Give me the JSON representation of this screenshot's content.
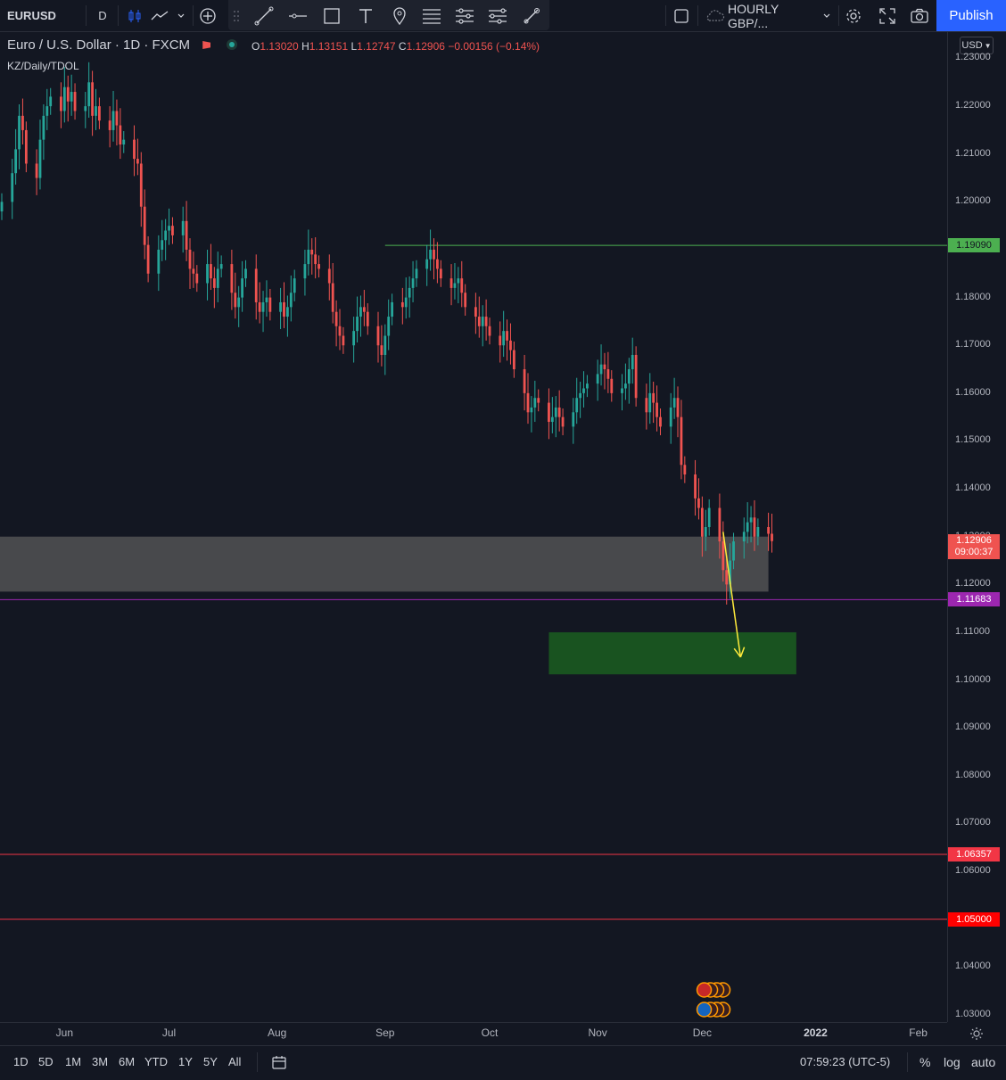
{
  "toolbar": {
    "symbol": "EURUSD",
    "interval": "D",
    "layout_name": "HOURLY GBP/...",
    "publish_label": "Publish"
  },
  "legend": {
    "title": "Euro / U.S. Dollar · 1D · FXCM",
    "o_label": "O",
    "o": "1.13020",
    "h_label": "H",
    "h": "1.13151",
    "l_label": "L",
    "l": "1.12747",
    "c_label": "C",
    "c": "1.12906",
    "change": "−0.00156 (−0.14%)",
    "indicator": "KZ/Daily/TDOL"
  },
  "currency": "USD",
  "colors": {
    "up": "#26a69a",
    "down": "#ef5350",
    "bg": "#131722",
    "resistance": "#4caf50",
    "support": "#9c27b0",
    "level": "#f23645",
    "zone_gray": "#5d5d5d",
    "zone_green": "#1b5e20",
    "arrow": "#ffeb3b",
    "accent": "#2962ff"
  },
  "chart_data": {
    "type": "candlestick",
    "series_name": "EURUSD",
    "ylim": [
      1.0285,
      1.2355
    ],
    "y_ticks": [
      1.23,
      1.22,
      1.21,
      1.2,
      1.19,
      1.18,
      1.17,
      1.16,
      1.15,
      1.14,
      1.13,
      1.12,
      1.11,
      1.1,
      1.09,
      1.08,
      1.07,
      1.06,
      1.05,
      1.04,
      1.03
    ],
    "x_labels": [
      "Jun",
      "Jul",
      "Aug",
      "Sep",
      "Oct",
      "Nov",
      "Dec",
      "2022",
      "Feb"
    ],
    "first_date": "2021-05-14",
    "closes": [
      1.2,
      1.206,
      1.211,
      1.218,
      1.215,
      1.208,
      1.205,
      1.213,
      1.218,
      1.22,
      1.222,
      1.219,
      1.224,
      1.221,
      1.223,
      1.219,
      1.22,
      1.225,
      1.218,
      1.22,
      1.217,
      1.215,
      1.219,
      1.216,
      1.212,
      1.213,
      1.209,
      1.208,
      1.199,
      1.191,
      1.185,
      1.19,
      1.192,
      1.194,
      1.195,
      1.193,
      1.196,
      1.19,
      1.186,
      1.185,
      1.183,
      1.187,
      1.184,
      1.182,
      1.186,
      1.187,
      1.181,
      1.178,
      1.18,
      1.184,
      1.186,
      1.179,
      1.177,
      1.179,
      1.18,
      1.177,
      1.179,
      1.176,
      1.178,
      1.181,
      1.184,
      1.187,
      1.19,
      1.189,
      1.187,
      1.186,
      1.183,
      1.177,
      1.174,
      1.172,
      1.17,
      1.173,
      1.176,
      1.178,
      1.177,
      1.174,
      1.17,
      1.168,
      1.172,
      1.176,
      1.179,
      1.178,
      1.18,
      1.182,
      1.184,
      1.186,
      1.188,
      1.19,
      1.188,
      1.186,
      1.184,
      1.182,
      1.183,
      1.184,
      1.181,
      1.178,
      1.176,
      1.174,
      1.176,
      1.174,
      1.172,
      1.17,
      1.173,
      1.171,
      1.169,
      1.165,
      1.16,
      1.156,
      1.157,
      1.159,
      1.158,
      1.154,
      1.155,
      1.157,
      1.155,
      1.153,
      1.156,
      1.159,
      1.16,
      1.161,
      1.162,
      1.164,
      1.166,
      1.165,
      1.163,
      1.16,
      1.161,
      1.162,
      1.165,
      1.168,
      1.159,
      1.156,
      1.16,
      1.158,
      1.155,
      1.153,
      1.157,
      1.159,
      1.155,
      1.145,
      1.143,
      1.138,
      1.136,
      1.13,
      1.132,
      1.136,
      1.129,
      1.123,
      1.12,
      1.125,
      1.129,
      1.131,
      1.133,
      1.134,
      1.13,
      1.132,
      1.1306,
      1.12906
    ],
    "last_price": "1.12906",
    "countdown": "09:00:37",
    "levels": [
      {
        "label": "1.19090",
        "value": 1.1909,
        "x_start_date": "2021-09-01",
        "type": "resistance"
      },
      {
        "label": "1.11683",
        "value": 1.11683,
        "type": "support"
      },
      {
        "label": "1.06357",
        "value": 1.06357,
        "type": "level"
      },
      {
        "label": "1.05000",
        "value": 1.05,
        "type": "level"
      }
    ],
    "zones": [
      {
        "name": "gray-zone",
        "from_date": "2021-05-14",
        "to_date": "2021-12-20",
        "y_low": 1.1185,
        "y_high": 1.13
      },
      {
        "name": "green-target-zone",
        "from_date": "2021-10-18",
        "to_date": "2021-12-28",
        "y_low": 1.1012,
        "y_high": 1.11
      }
    ],
    "arrow": {
      "from_date": "2021-12-07",
      "from_y": 1.131,
      "to_date": "2021-12-12",
      "to_y": 1.1048
    }
  },
  "time_axis_labels": [
    {
      "label": "Jun"
    },
    {
      "label": "Jul"
    },
    {
      "label": "Aug"
    },
    {
      "label": "Sep"
    },
    {
      "label": "Oct"
    },
    {
      "label": "Nov"
    },
    {
      "label": "Dec"
    },
    {
      "label": "2022"
    },
    {
      "label": "Feb"
    }
  ],
  "bottom": {
    "ranges": [
      "1D",
      "5D",
      "1M",
      "3M",
      "6M",
      "YTD",
      "1Y",
      "5Y",
      "All"
    ],
    "clock": "07:59:23 (UTC-5)",
    "percent": "%",
    "log": "log",
    "auto": "auto"
  }
}
